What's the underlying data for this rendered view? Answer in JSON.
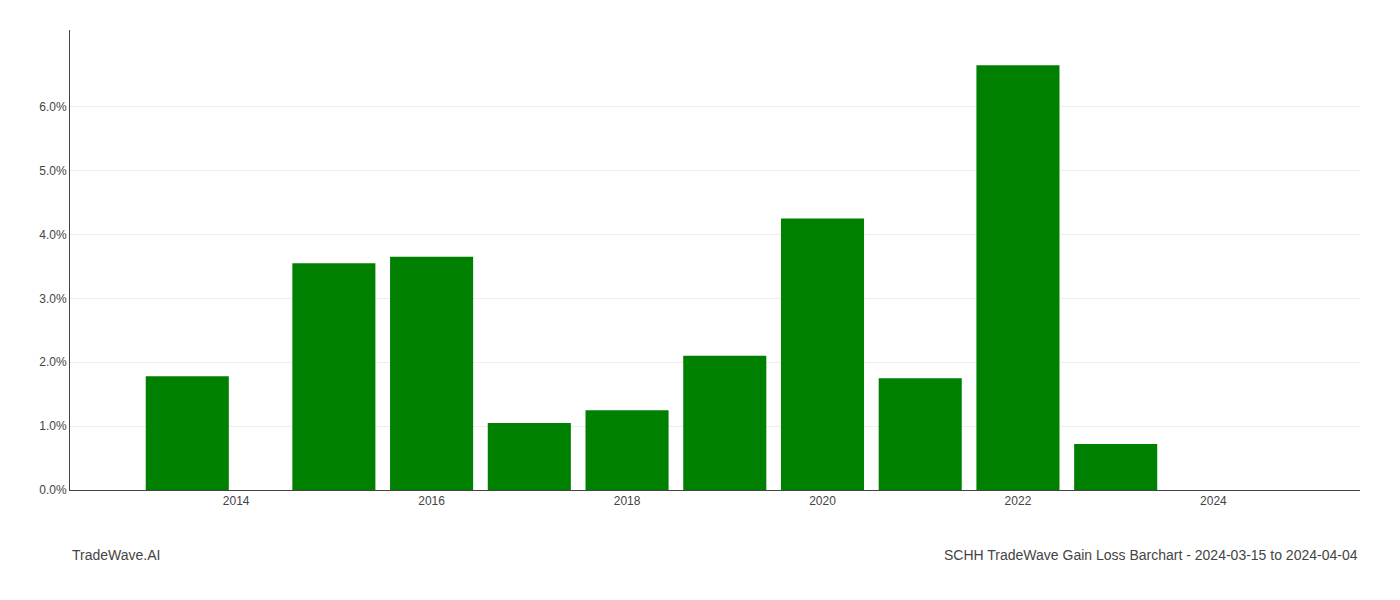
{
  "chart_data": {
    "type": "bar",
    "title": "SCHH TradeWave Gain Loss Barchart - 2024-03-15 to 2024-04-04",
    "annotations": [
      "TradeWave.AI"
    ],
    "x": [
      2013.5,
      2015.0,
      2016.0,
      2017.0,
      2018.0,
      2019.0,
      2020.0,
      2021.0,
      2022.0,
      2023.0
    ],
    "values": [
      0.0178,
      0.0355,
      0.0365,
      0.0105,
      0.0125,
      0.021,
      0.0425,
      0.0175,
      0.0665,
      0.0072
    ],
    "color": "#008000",
    "xlim": [
      2012.3,
      2025.5
    ],
    "xticks": [
      2014,
      2016,
      2018,
      2020,
      2022,
      2024
    ],
    "ylim": [
      0.0,
      0.072
    ],
    "yticks": [
      {
        "value": 0.0,
        "label": "0.0%"
      },
      {
        "value": 0.01,
        "label": "1.0%"
      },
      {
        "value": 0.02,
        "label": "2.0%"
      },
      {
        "value": 0.03,
        "label": "3.0%"
      },
      {
        "value": 0.04,
        "label": "4.0%"
      },
      {
        "value": 0.05,
        "label": "5.0%"
      },
      {
        "value": 0.06,
        "label": "6.0%"
      }
    ],
    "grid": true
  }
}
